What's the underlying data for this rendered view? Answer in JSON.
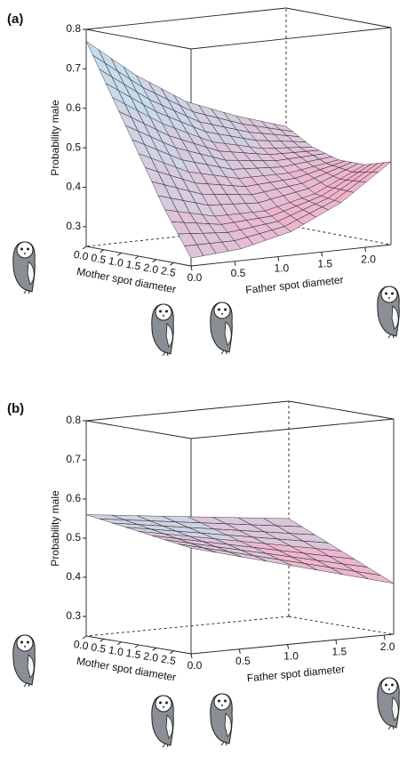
{
  "chart_data": [
    {
      "type": "surface3d",
      "label": "(a)",
      "zlabel": "Probability male",
      "xlabel": "Mother spot diameter",
      "ylabel": "Father spot diameter",
      "x": [
        0,
        0.75,
        1.5,
        2.25,
        3.0
      ],
      "y": [
        0,
        0.575,
        1.15,
        1.725,
        2.3
      ],
      "z": [
        [
          0.77,
          0.67,
          0.59,
          0.54,
          0.5
        ],
        [
          0.64,
          0.56,
          0.5,
          0.47,
          0.46
        ],
        [
          0.51,
          0.45,
          0.42,
          0.42,
          0.44
        ],
        [
          0.38,
          0.35,
          0.35,
          0.38,
          0.44
        ],
        [
          0.27,
          0.28,
          0.31,
          0.37,
          0.46
        ]
      ],
      "xlim": [
        0,
        3.0
      ],
      "ylim": [
        0,
        2.3
      ],
      "zlim": [
        0.25,
        0.8
      ],
      "xticks": [
        {
          "value": 0,
          "label": "0.0"
        },
        0.5,
        {
          "value": 1,
          "label": "1.0"
        },
        1.5,
        {
          "value": 2,
          "label": "2.0"
        },
        2.5
      ],
      "yticks": [
        {
          "value": 0,
          "label": "0.0"
        },
        0.5,
        {
          "value": 1,
          "label": "1.0"
        },
        1.5,
        {
          "value": 2,
          "label": "2.0"
        }
      ],
      "zticks": [
        0.3,
        0.4,
        0.5,
        0.6,
        0.7,
        0.8
      ]
    },
    {
      "type": "surface3d",
      "label": "(b)",
      "zlabel": "Probability male",
      "xlabel": "Mother spot diameter",
      "ylabel": "Father spot diameter",
      "x": [
        0,
        1.5,
        3.0
      ],
      "y": [
        0,
        1.05,
        2.1
      ],
      "z": [
        [
          0.56,
          0.53,
          0.5
        ],
        [
          0.54,
          0.49,
          0.44
        ],
        [
          0.52,
          0.45,
          0.38
        ]
      ],
      "xlim": [
        0,
        3.0
      ],
      "ylim": [
        0,
        2.1
      ],
      "zlim": [
        0.25,
        0.8
      ],
      "xticks": [
        {
          "value": 0,
          "label": "0.0"
        },
        0.5,
        {
          "value": 1,
          "label": "1.0"
        },
        1.5,
        {
          "value": 2,
          "label": "2.0"
        },
        2.5
      ],
      "yticks": [
        {
          "value": 0,
          "label": "0.0"
        },
        0.5,
        {
          "value": 1,
          "label": "1.0"
        },
        1.5,
        {
          "value": 2,
          "label": "2.0"
        }
      ],
      "zticks": [
        0.3,
        0.4,
        0.5,
        0.6,
        0.7,
        0.8
      ]
    }
  ]
}
